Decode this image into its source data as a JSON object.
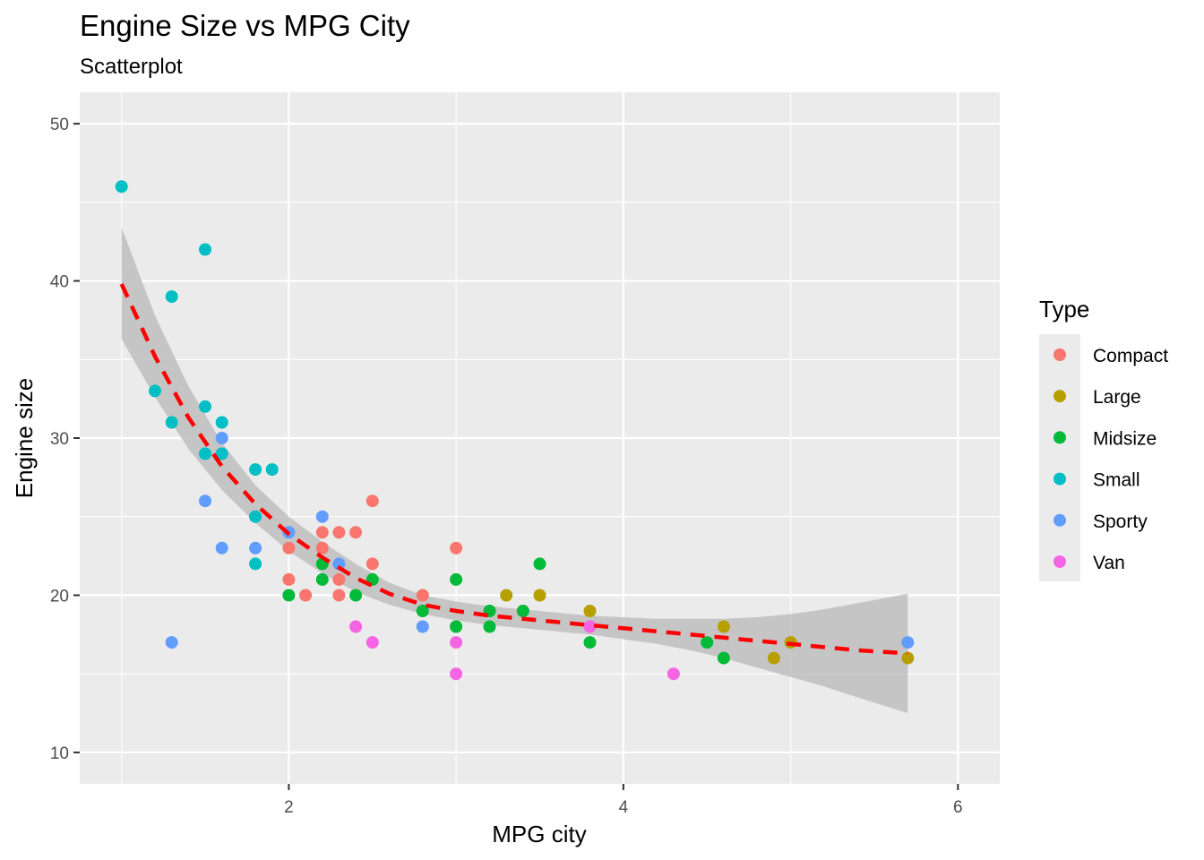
{
  "chart_data": {
    "type": "scatter",
    "title": "Engine Size vs MPG City",
    "subtitle": "Scatterplot",
    "xlabel": "MPG city",
    "ylabel": "Engine size",
    "xlim": [
      0.75,
      6.25
    ],
    "ylim": [
      8,
      52
    ],
    "x_ticks": [
      2,
      4,
      6
    ],
    "y_ticks": [
      10,
      20,
      30,
      40,
      50
    ],
    "grid": true,
    "legend": {
      "title": "Type",
      "placement": "right",
      "entries": [
        {
          "name": "Compact",
          "color": "#F8766D"
        },
        {
          "name": "Large",
          "color": "#B79F00"
        },
        {
          "name": "Midsize",
          "color": "#00BA38"
        },
        {
          "name": "Small",
          "color": "#00BFC4"
        },
        {
          "name": "Sporty",
          "color": "#619CFF"
        },
        {
          "name": "Van",
          "color": "#F564E3"
        }
      ]
    },
    "series": [
      {
        "name": "Compact",
        "color": "#F8766D",
        "points": [
          [
            2.0,
            23
          ],
          [
            2.0,
            21
          ],
          [
            2.1,
            20
          ],
          [
            2.2,
            24
          ],
          [
            2.2,
            23
          ],
          [
            2.3,
            24
          ],
          [
            2.3,
            21
          ],
          [
            2.3,
            20
          ],
          [
            2.4,
            24
          ],
          [
            2.5,
            26
          ],
          [
            2.5,
            22
          ],
          [
            2.8,
            20
          ],
          [
            3.0,
            23
          ]
        ]
      },
      {
        "name": "Large",
        "color": "#B79F00",
        "points": [
          [
            3.3,
            20
          ],
          [
            3.5,
            20
          ],
          [
            3.8,
            19
          ],
          [
            4.6,
            18
          ],
          [
            4.9,
            16
          ],
          [
            5.0,
            17
          ],
          [
            5.7,
            16
          ]
        ]
      },
      {
        "name": "Midsize",
        "color": "#00BA38",
        "points": [
          [
            2.0,
            20
          ],
          [
            2.2,
            22
          ],
          [
            2.2,
            21
          ],
          [
            2.4,
            20
          ],
          [
            2.5,
            21
          ],
          [
            2.8,
            19
          ],
          [
            3.0,
            21
          ],
          [
            3.0,
            18
          ],
          [
            3.2,
            19
          ],
          [
            3.2,
            18
          ],
          [
            3.4,
            19
          ],
          [
            3.5,
            22
          ],
          [
            3.8,
            17
          ],
          [
            4.5,
            17
          ],
          [
            4.6,
            16
          ]
        ]
      },
      {
        "name": "Small",
        "color": "#00BFC4",
        "points": [
          [
            1.0,
            46
          ],
          [
            1.2,
            33
          ],
          [
            1.3,
            39
          ],
          [
            1.3,
            31
          ],
          [
            1.5,
            42
          ],
          [
            1.5,
            32
          ],
          [
            1.5,
            29
          ],
          [
            1.6,
            31
          ],
          [
            1.6,
            29
          ],
          [
            1.8,
            28
          ],
          [
            1.8,
            25
          ],
          [
            1.8,
            22
          ],
          [
            1.9,
            28
          ]
        ]
      },
      {
        "name": "Sporty",
        "color": "#619CFF",
        "points": [
          [
            1.3,
            17
          ],
          [
            1.5,
            26
          ],
          [
            1.6,
            30
          ],
          [
            1.6,
            23
          ],
          [
            1.8,
            23
          ],
          [
            2.0,
            24
          ],
          [
            2.2,
            25
          ],
          [
            2.3,
            22
          ],
          [
            2.8,
            18
          ],
          [
            5.7,
            17
          ]
        ]
      },
      {
        "name": "Van",
        "color": "#F564E3",
        "points": [
          [
            2.4,
            18
          ],
          [
            2.5,
            17
          ],
          [
            3.0,
            17
          ],
          [
            3.0,
            15
          ],
          [
            3.8,
            18
          ],
          [
            4.3,
            15
          ]
        ]
      }
    ],
    "smooth": {
      "color": "#FF0000",
      "line_style": "dashed",
      "band_color": "#BEBEBE",
      "x": [
        1.0,
        1.2,
        1.4,
        1.6,
        1.8,
        2.0,
        2.2,
        2.4,
        2.6,
        2.8,
        3.0,
        3.2,
        3.4,
        3.6,
        3.8,
        4.0,
        4.2,
        4.4,
        4.6,
        4.8,
        5.0,
        5.2,
        5.4,
        5.7
      ],
      "y": [
        39.8,
        35.2,
        31.3,
        28.2,
        25.8,
        23.9,
        22.4,
        21.1,
        20.1,
        19.4,
        19.0,
        18.7,
        18.5,
        18.3,
        18.1,
        17.9,
        17.7,
        17.5,
        17.3,
        17.1,
        16.9,
        16.7,
        16.5,
        16.3
      ],
      "lower": [
        36.3,
        32.6,
        29.3,
        26.7,
        24.6,
        22.8,
        21.4,
        20.2,
        19.4,
        18.8,
        18.4,
        18.1,
        17.9,
        17.7,
        17.5,
        17.2,
        16.9,
        16.5,
        16.0,
        15.4,
        14.8,
        14.2,
        13.5,
        12.5
      ],
      "upper": [
        43.4,
        37.8,
        33.3,
        29.7,
        27.0,
        25.0,
        23.4,
        22.0,
        20.8,
        20.0,
        19.6,
        19.3,
        19.1,
        18.9,
        18.7,
        18.6,
        18.5,
        18.5,
        18.5,
        18.6,
        18.8,
        19.1,
        19.5,
        20.1
      ]
    }
  }
}
